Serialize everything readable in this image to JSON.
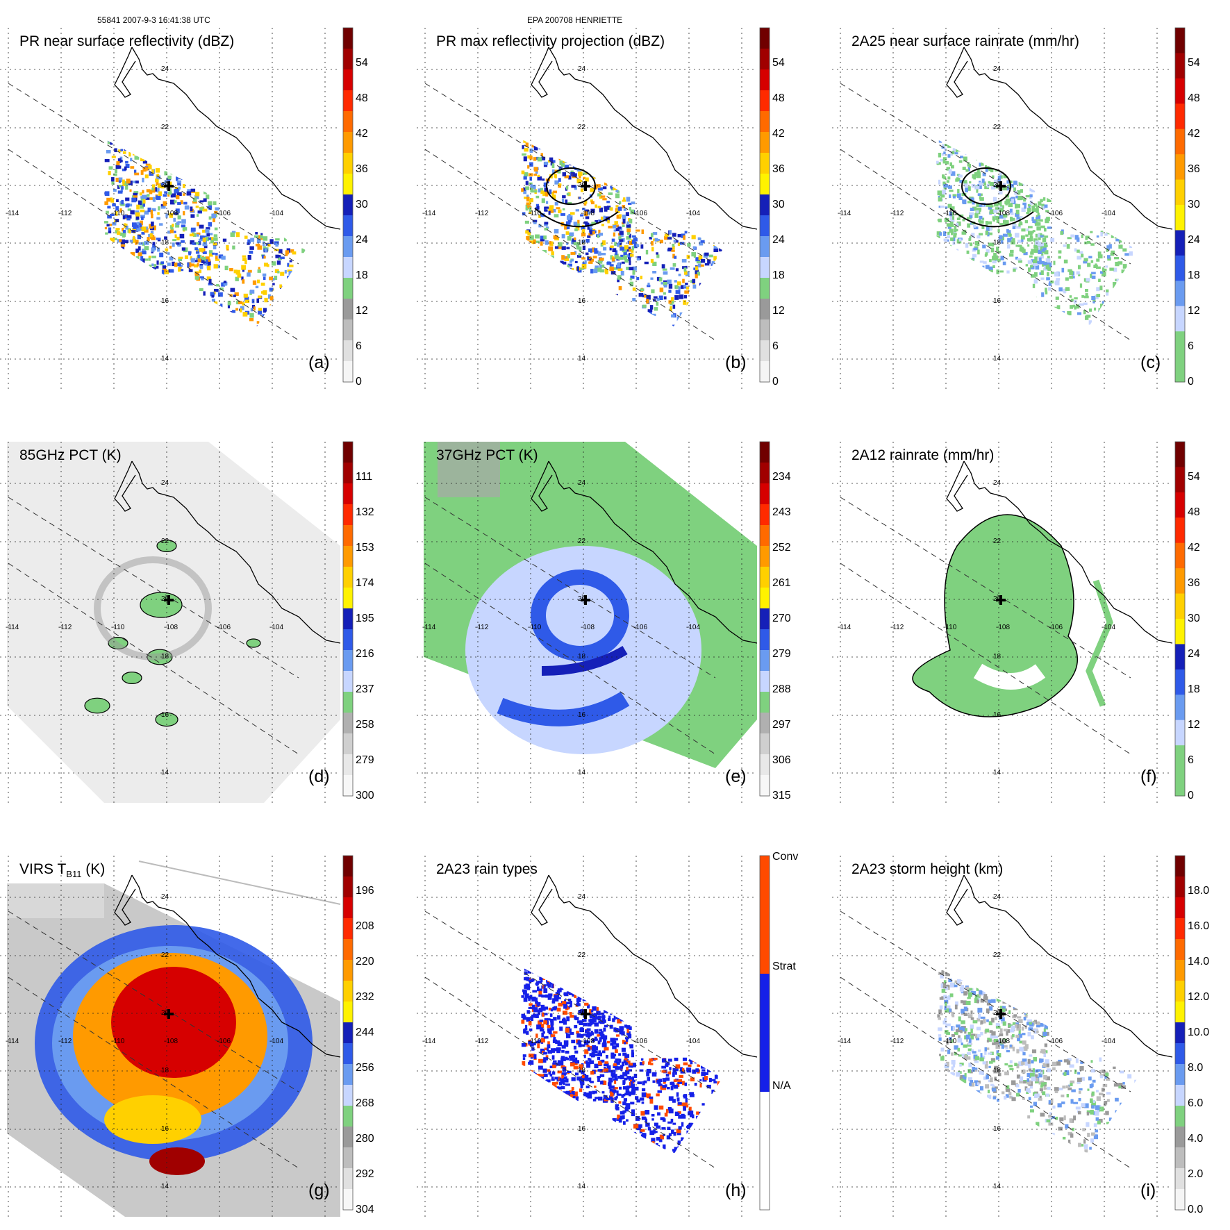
{
  "header": {
    "orbit_time": "55841 2007-9-3 16:41:38 UTC",
    "storm": "EPA 200708 HENRIETTE"
  },
  "colors": {
    "coast": "#000000",
    "grid": "#222222",
    "light_green": "#7fdb7f",
    "blue": "#1f3fe0",
    "orange": "#f28a12",
    "red": "#d01a0a",
    "gray_bg": "#dcdcdc"
  },
  "map": {
    "lon_labels": [
      "-114",
      "-112",
      "-110",
      "-108",
      "-106",
      "-104"
    ],
    "lat_labels": [
      "24",
      "22",
      "20",
      "18",
      "16",
      "14"
    ]
  },
  "panels": [
    {
      "id": "a",
      "title": "PR near surface reflectivity (dBZ)",
      "label": "(a)",
      "colorbar": [
        "54",
        "48",
        "42",
        "36",
        "30",
        "24",
        "18",
        "12",
        "6",
        "0"
      ],
      "style": "swath-reflectivity",
      "bar": [
        "#f5f5f5",
        "#e0e0e0",
        "#bdbdbd",
        "#9a9a9a",
        "#7fd17f",
        "#c7d6ff",
        "#6a9bf0",
        "#2f5ae8",
        "#1520b8",
        "#fff200",
        "#ffd000",
        "#ff9a00",
        "#ff6a00",
        "#ff2a00",
        "#d60000",
        "#a00000",
        "#700000"
      ]
    },
    {
      "id": "b",
      "title": "PR max reflectivity projection (dBZ)",
      "label": "(b)",
      "colorbar": [
        "54",
        "48",
        "42",
        "36",
        "30",
        "24",
        "18",
        "12",
        "6",
        "0"
      ],
      "style": "swath-reflectivity-contour",
      "bar": [
        "#f5f5f5",
        "#e0e0e0",
        "#bdbdbd",
        "#9a9a9a",
        "#7fd17f",
        "#c7d6ff",
        "#6a9bf0",
        "#2f5ae8",
        "#1520b8",
        "#fff200",
        "#ffd000",
        "#ff9a00",
        "#ff6a00",
        "#ff2a00",
        "#d60000",
        "#a00000",
        "#700000"
      ]
    },
    {
      "id": "c",
      "title": "2A25 near surface rainrate (mm/hr)",
      "label": "(c)",
      "colorbar": [
        "54",
        "48",
        "42",
        "36",
        "30",
        "24",
        "18",
        "12",
        "6",
        "0"
      ],
      "style": "swath-rain",
      "bar": [
        "#7fd17f",
        "#7fd17f",
        "#c7d6ff",
        "#6a9bf0",
        "#2f5ae8",
        "#1520b8",
        "#fff200",
        "#ffd000",
        "#ff9a00",
        "#ff6a00",
        "#ff2a00",
        "#d60000",
        "#a00000",
        "#700000"
      ]
    },
    {
      "id": "d",
      "title": "85GHz PCT (K)",
      "label": "(d)",
      "colorbar": [
        "111",
        "132",
        "153",
        "174",
        "195",
        "216",
        "237",
        "258",
        "279",
        "300"
      ],
      "style": "wide-gray",
      "bar": [
        "#f7f7f7",
        "#e8e8e8",
        "#cfcfcf",
        "#b0b0b0",
        "#7fd17f",
        "#c7d6ff",
        "#6a9bf0",
        "#2f5ae8",
        "#1520b8",
        "#fff200",
        "#ffd000",
        "#ff9a00",
        "#ff6a00",
        "#ff2a00",
        "#d60000",
        "#a00000",
        "#700000"
      ]
    },
    {
      "id": "e",
      "title": "37GHz PCT (K)",
      "label": "(e)",
      "colorbar": [
        "234",
        "243",
        "252",
        "261",
        "270",
        "279",
        "288",
        "297",
        "306",
        "315"
      ],
      "style": "wide-green",
      "bar": [
        "#f7f7f7",
        "#e8e8e8",
        "#cfcfcf",
        "#b0b0b0",
        "#7fd17f",
        "#c7d6ff",
        "#6a9bf0",
        "#2f5ae8",
        "#1520b8",
        "#fff200",
        "#ffd000",
        "#ff9a00",
        "#ff6a00",
        "#ff2a00",
        "#d60000",
        "#a00000",
        "#700000"
      ]
    },
    {
      "id": "f",
      "title": "2A12 rainrate (mm/hr)",
      "label": "(f)",
      "colorbar": [
        "54",
        "48",
        "42",
        "36",
        "30",
        "24",
        "18",
        "12",
        "6",
        "0"
      ],
      "style": "wide-rain",
      "bar": [
        "#7fd17f",
        "#7fd17f",
        "#c7d6ff",
        "#6a9bf0",
        "#2f5ae8",
        "#1520b8",
        "#fff200",
        "#ffd000",
        "#ff9a00",
        "#ff6a00",
        "#ff2a00",
        "#d60000",
        "#a00000",
        "#700000"
      ]
    },
    {
      "id": "g",
      "title_main": "VIRS T",
      "title_sub": "B11",
      "title_end": " (K)",
      "label": "(g)",
      "colorbar": [
        "196",
        "208",
        "220",
        "232",
        "244",
        "256",
        "268",
        "280",
        "292",
        "304"
      ],
      "style": "wide-ir",
      "bar": [
        "#f7f7f7",
        "#e0e0e0",
        "#bdbdbd",
        "#9a9a9a",
        "#7fd17f",
        "#c7d6ff",
        "#6a9bf0",
        "#2f5ae8",
        "#1520b8",
        "#fff200",
        "#ffd000",
        "#ff9a00",
        "#ff6a00",
        "#ff2a00",
        "#d60000",
        "#a00000",
        "#700000"
      ]
    },
    {
      "id": "h",
      "title": "2A23 rain types",
      "label": "(h)",
      "colorbar_cat": [
        "Conv",
        "Strat",
        "N/A"
      ],
      "style": "swath-types",
      "bar": [
        "#ffffff",
        "#1520e8",
        "#ff4a00"
      ]
    },
    {
      "id": "i",
      "title": "2A23 storm height (km)",
      "label": "(i)",
      "colorbar": [
        "18.0",
        "16.0",
        "14.0",
        "12.0",
        "10.0",
        "8.0",
        "6.0",
        "4.0",
        "2.0",
        "0.0"
      ],
      "style": "swath-height",
      "bar": [
        "#f5f5f5",
        "#e0e0e0",
        "#bdbdbd",
        "#9a9a9a",
        "#7fd17f",
        "#c7d6ff",
        "#6a9bf0",
        "#2f5ae8",
        "#1520b8",
        "#fff200",
        "#ffd000",
        "#ff9a00",
        "#ff6a00",
        "#ff2a00",
        "#d60000",
        "#a00000",
        "#700000"
      ]
    }
  ]
}
